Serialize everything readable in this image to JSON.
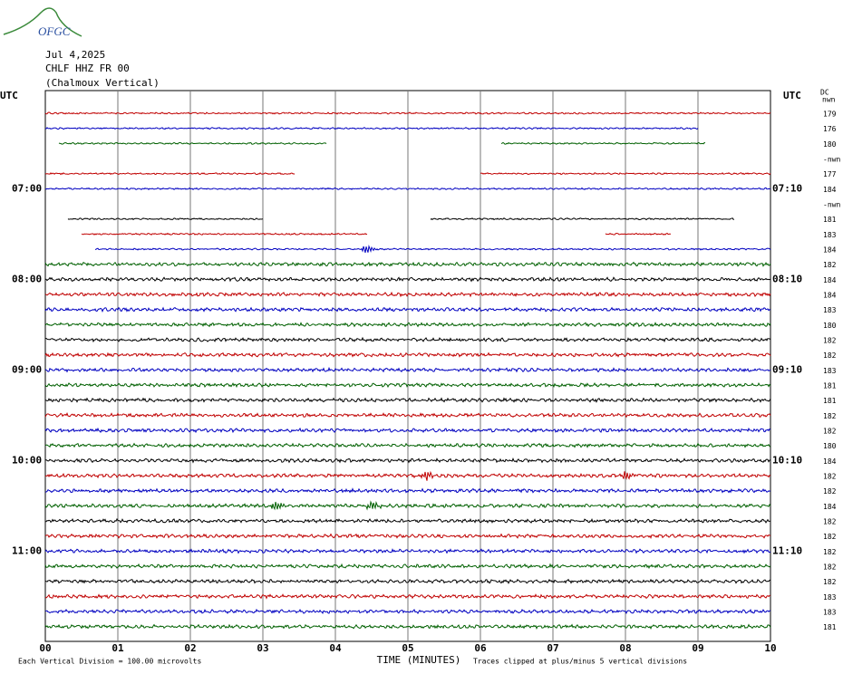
{
  "logo": "OFGC",
  "header": {
    "lines": [
      "Jul 4,2025",
      "CHLF HHZ FR 00",
      "(Chalmoux Vertical)"
    ]
  },
  "left_axis": {
    "title": "UTC",
    "labels": [
      "07:00",
      "08:00",
      "09:00",
      "10:00",
      "11:00"
    ]
  },
  "right_axis": {
    "title": "UTC",
    "labels": [
      "07:10",
      "08:10",
      "09:10",
      "10:10",
      "11:10"
    ]
  },
  "dc": {
    "title": "DC",
    "subtitle": "nwn",
    "values": [
      "179",
      "176",
      "180",
      "-nwn",
      "177",
      "184",
      "-nwn",
      "181",
      "183",
      "184",
      "182",
      "184",
      "184",
      "183",
      "180",
      "182",
      "182",
      "183",
      "181",
      "181",
      "182",
      "182",
      "180",
      "184",
      "182",
      "182",
      "184",
      "182",
      "182",
      "182",
      "182",
      "182",
      "183",
      "183",
      "181"
    ]
  },
  "x_axis": {
    "ticks": [
      "00",
      "01",
      "02",
      "03",
      "04",
      "05",
      "06",
      "07",
      "08",
      "09",
      "10"
    ],
    "title": "TIME (MINUTES)"
  },
  "footer": {
    "scale": "Each Vertical Division =  100.00 microvolts",
    "clip": "Traces clipped at plus/minus 5 vertical divisions"
  }
}
